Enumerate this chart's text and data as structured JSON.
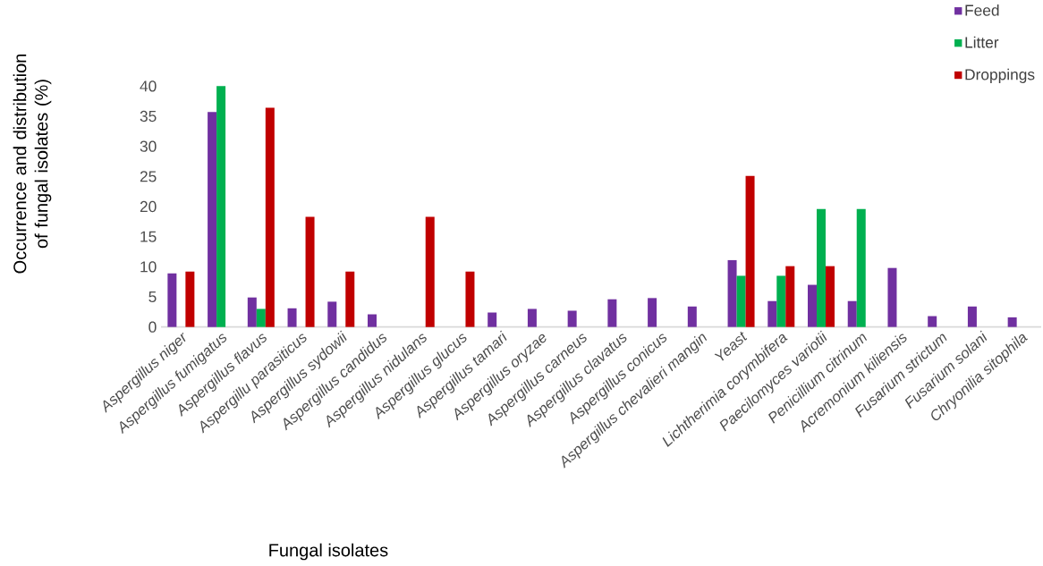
{
  "chart_data": {
    "type": "bar",
    "xlabel": "Fungal isolates",
    "ylabel": "Occurrence and distribution of fungal isolates (%)",
    "categories": [
      "Aspergillus niger",
      "Aspergillus fumigatus",
      "Aspergillus flavus",
      "Aspergillu parasiticus",
      "Aspergillus sydowii",
      "Aspergillus candidus",
      "Aspergillus nidulans",
      "Aspergillus glucus",
      "Aspergillus tamari",
      "Aspergillus oryzae",
      "Aspergillus carneus",
      "Aspergillus clavatus",
      "Aspergillus conicus",
      "Aspergillus chevalieri mangin",
      "Yeast",
      "Lichtherimia corymbifera",
      "Paecilomyces variotii",
      "Penicillium citrinum",
      "Acremonium kiliensis",
      "Fusarium strictum",
      "Fusarium solani",
      "Chryonilia sitophila"
    ],
    "series": [
      {
        "name": "Feed",
        "color": "#7030a0",
        "values": [
          8.9,
          35.7,
          4.9,
          3.1,
          4.2,
          2.1,
          null,
          null,
          2.4,
          3.0,
          2.7,
          4.6,
          4.8,
          3.4,
          11.1,
          4.3,
          7.0,
          4.3,
          9.8,
          1.8,
          3.4,
          1.6
        ]
      },
      {
        "name": "Litter",
        "color": "#00b050",
        "values": [
          null,
          40,
          3.0,
          null,
          null,
          null,
          null,
          null,
          null,
          null,
          null,
          null,
          null,
          null,
          8.5,
          8.5,
          19.6,
          19.6,
          null,
          null,
          null,
          null
        ]
      },
      {
        "name": "Droppings",
        "color": "#c00000",
        "values": [
          9.2,
          null,
          36.4,
          18.3,
          9.2,
          null,
          18.3,
          9.2,
          null,
          null,
          null,
          null,
          null,
          null,
          25.1,
          10.1,
          10.1,
          null,
          null,
          null,
          null,
          null
        ]
      }
    ],
    "ylim": [
      0,
      40
    ],
    "yticks": [
      0,
      5,
      10,
      15,
      20,
      25,
      30,
      35,
      40
    ],
    "legend": "top right"
  }
}
